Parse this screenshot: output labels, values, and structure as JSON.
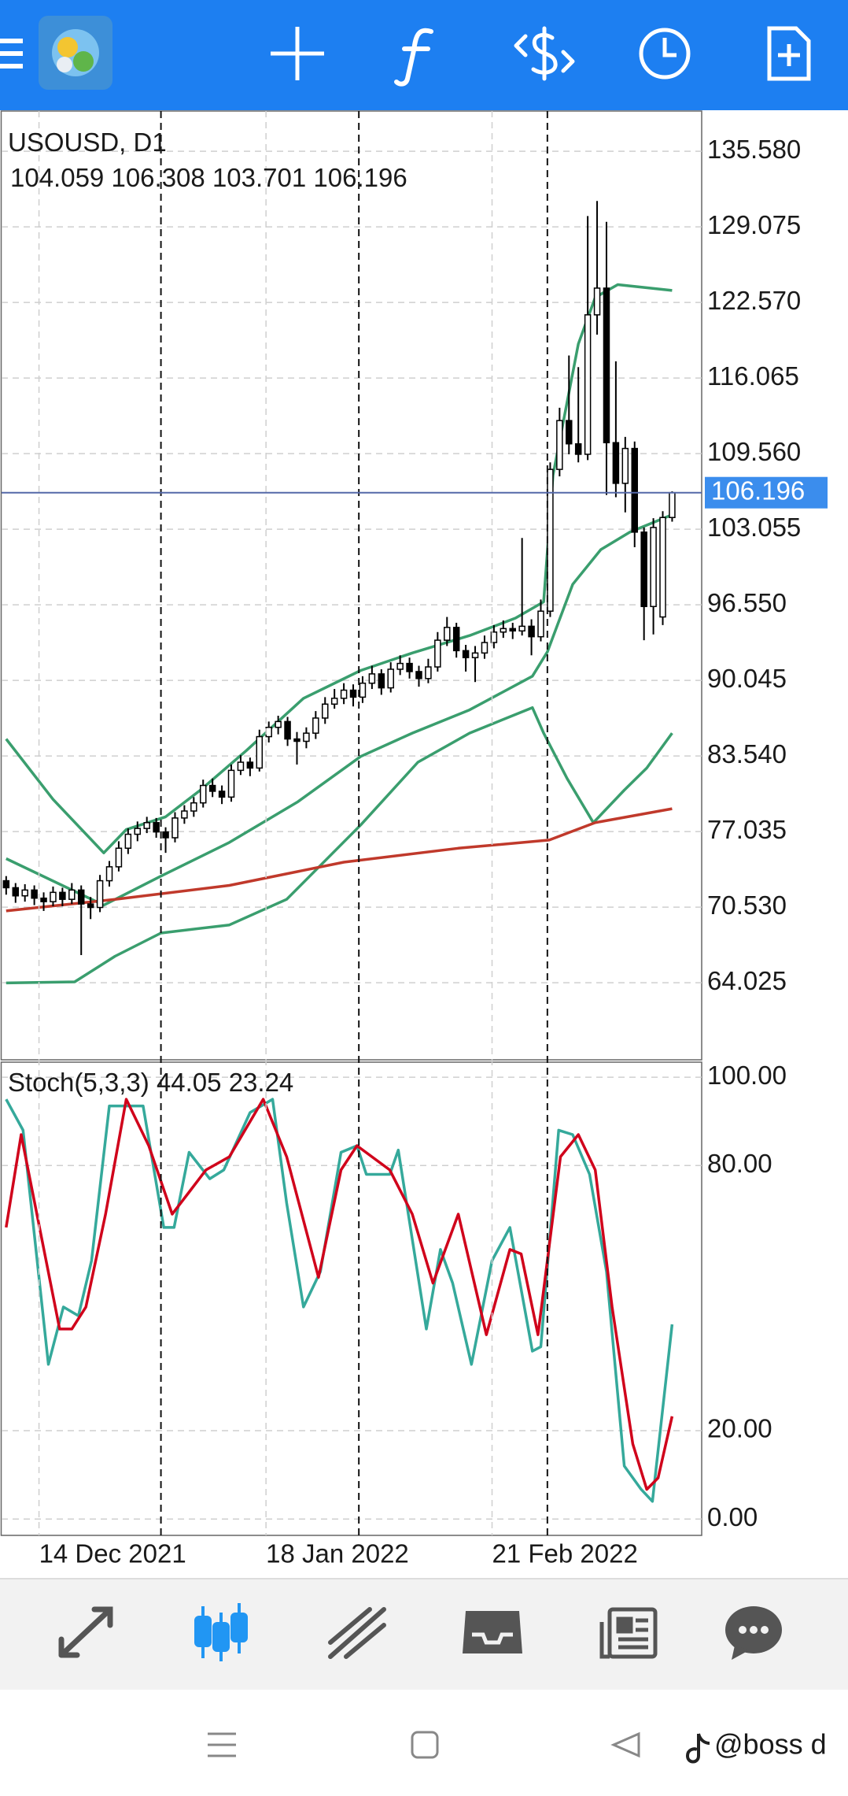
{
  "chart_data": [
    {
      "type": "candlestick",
      "title": "USOUSD, D1",
      "xlim": [
        -0.49,
        74.15
      ],
      "ylim": [
        57.39,
        139.04
      ],
      "yticks": [
        {
          "value": 135.58,
          "label": "135.580"
        },
        129.075,
        {
          "value": 122.57,
          "label": "122.570"
        },
        116.065,
        {
          "value": 109.56,
          "label": "109.560"
        },
        103.055,
        {
          "value": 96.55,
          "label": "96.550"
        },
        90.045,
        {
          "value": 83.54,
          "label": "83.540"
        },
        77.035,
        {
          "value": 70.53,
          "label": "70.530"
        },
        64.025
      ],
      "xticks": [
        {
          "value": 3.5,
          "label": "14 Dec 2021"
        },
        {
          "value": 27.7,
          "label": "18 Jan 2022"
        },
        {
          "value": 51.8,
          "label": "21 Feb 2022"
        }
      ],
      "grid": true,
      "up_color": "#ffffff",
      "down_color": "#000000",
      "candles": [
        [
          72.8,
          73.2,
          71.6,
          72.2
        ],
        [
          72.2,
          72.6,
          70.9,
          71.5
        ],
        [
          71.5,
          72.5,
          71.0,
          72.0
        ],
        [
          72.0,
          72.4,
          70.7,
          71.3
        ],
        [
          71.3,
          71.8,
          70.2,
          71.0
        ],
        [
          71.0,
          72.3,
          70.6,
          71.8
        ],
        [
          71.8,
          72.2,
          70.6,
          71.2
        ],
        [
          71.2,
          72.6,
          70.8,
          72.0
        ],
        [
          72.0,
          72.4,
          66.4,
          70.8
        ],
        [
          70.8,
          71.4,
          69.5,
          70.5
        ],
        [
          70.5,
          73.3,
          70.1,
          72.8
        ],
        [
          72.8,
          74.5,
          72.3,
          74.0
        ],
        [
          74.0,
          76.2,
          73.6,
          75.6
        ],
        [
          75.6,
          77.3,
          75.1,
          76.8
        ],
        [
          76.8,
          77.9,
          76.2,
          77.3
        ],
        [
          77.3,
          78.3,
          76.9,
          77.8
        ],
        [
          77.8,
          78.2,
          76.5,
          77.0
        ],
        [
          77.0,
          77.4,
          75.2,
          76.5
        ],
        [
          76.5,
          78.7,
          76.1,
          78.2
        ],
        [
          78.2,
          79.3,
          77.7,
          78.8
        ],
        [
          78.8,
          80.0,
          78.3,
          79.5
        ],
        [
          79.5,
          81.5,
          79.1,
          81.0
        ],
        [
          81.0,
          81.6,
          80.0,
          80.5
        ],
        [
          80.5,
          81.0,
          79.4,
          80.0
        ],
        [
          80.0,
          82.8,
          79.6,
          82.3
        ],
        [
          82.3,
          83.6,
          81.9,
          83.0
        ],
        [
          83.0,
          83.4,
          81.8,
          82.5
        ],
        [
          82.5,
          85.8,
          82.2,
          85.2
        ],
        [
          85.2,
          86.5,
          84.7,
          86.0
        ],
        [
          86.0,
          87.0,
          85.4,
          86.5
        ],
        [
          86.5,
          86.9,
          84.4,
          85.0
        ],
        [
          85.0,
          85.6,
          82.8,
          84.8
        ],
        [
          84.8,
          86.0,
          84.2,
          85.5
        ],
        [
          85.5,
          87.4,
          85.0,
          86.8
        ],
        [
          86.8,
          88.6,
          86.3,
          88.0
        ],
        [
          88.0,
          89.3,
          87.6,
          88.5
        ],
        [
          88.5,
          89.8,
          88.0,
          89.2
        ],
        [
          89.2,
          89.7,
          87.8,
          88.6
        ],
        [
          88.6,
          90.4,
          88.1,
          89.8
        ],
        [
          89.8,
          91.3,
          89.3,
          90.6
        ],
        [
          90.6,
          91.0,
          88.8,
          89.4
        ],
        [
          89.4,
          91.6,
          89.0,
          91.0
        ],
        [
          91.0,
          92.2,
          90.5,
          91.5
        ],
        [
          91.5,
          92.0,
          90.2,
          90.8
        ],
        [
          90.8,
          91.3,
          89.5,
          90.2
        ],
        [
          90.2,
          91.9,
          89.8,
          91.2
        ],
        [
          91.2,
          94.2,
          90.8,
          93.5
        ],
        [
          93.5,
          95.5,
          93.0,
          94.6
        ],
        [
          94.6,
          95.0,
          92.0,
          92.6
        ],
        [
          92.6,
          93.1,
          90.8,
          92.0
        ],
        [
          92.0,
          93.0,
          89.9,
          92.4
        ],
        [
          92.4,
          93.9,
          91.9,
          93.3
        ],
        [
          93.3,
          94.8,
          92.8,
          94.2
        ],
        [
          94.2,
          95.2,
          93.7,
          94.5
        ],
        [
          94.5,
          95.0,
          93.6,
          94.3
        ],
        [
          94.3,
          102.3,
          93.9,
          94.7
        ],
        [
          94.7,
          95.3,
          92.2,
          93.8
        ],
        [
          93.8,
          97.0,
          93.4,
          96.0
        ],
        [
          96.0,
          108.8,
          95.5,
          108.2
        ],
        [
          108.2,
          113.5,
          107.6,
          112.4
        ],
        [
          112.4,
          118.0,
          109.5,
          110.4
        ],
        [
          110.4,
          117.0,
          108.8,
          109.5
        ],
        [
          109.5,
          130.0,
          109.0,
          121.5
        ],
        [
          121.5,
          131.3,
          119.8,
          123.8
        ],
        [
          123.8,
          129.5,
          106.0,
          110.5
        ],
        [
          110.5,
          117.5,
          105.8,
          107.0
        ],
        [
          107.0,
          111.0,
          104.5,
          110.0
        ],
        [
          110.0,
          110.6,
          101.5,
          102.8
        ],
        [
          102.8,
          103.2,
          93.5,
          96.4
        ],
        [
          96.4,
          104.0,
          94.0,
          103.2
        ],
        [
          95.5,
          104.6,
          94.8,
          104.059
        ],
        [
          104.059,
          106.308,
          103.701,
          106.196
        ]
      ],
      "price_line_color": "#5468a8",
      "price_label_color": "#3b8ded",
      "series": [
        {
          "color": "#3a9e6e",
          "x": [
            0,
            5,
            10.4,
            12.8,
            17,
            20.7,
            25.6,
            31.7,
            37.8,
            43.3,
            49.4,
            54.3,
            57.3,
            58.3,
            61,
            62.8,
            65.2,
            71
          ],
          "values": [
            85.0,
            79.8,
            75.2,
            77.2,
            78.3,
            80.6,
            84.0,
            88.5,
            90.9,
            92.4,
            93.9,
            95.4,
            96.8,
            107.7,
            119.0,
            123.0,
            124.1,
            123.6
          ]
        },
        {
          "color": "#3a9e6e",
          "x": [
            0,
            10.4,
            16.5,
            23.8,
            31.1,
            37.8,
            43.3,
            49.4,
            56.1,
            57.7,
            60.4,
            63.4,
            66.5,
            71
          ],
          "values": [
            74.7,
            70.7,
            73.2,
            76.1,
            79.6,
            83.5,
            85.5,
            87.5,
            90.4,
            92.5,
            98.3,
            101.3,
            102.8,
            104.3
          ]
        },
        {
          "color": "#3a9e6e",
          "x": [
            0,
            7.3,
            11.6,
            16.5,
            23.8,
            29.9,
            37.8,
            43.9,
            49.4,
            56.1,
            57.3,
            59.8,
            62.6,
            65.9,
            68.3,
            71
          ],
          "values": [
            64.0,
            64.1,
            66.3,
            68.3,
            69.0,
            71.2,
            77.6,
            83.0,
            85.5,
            87.7,
            85.5,
            81.6,
            77.8,
            80.6,
            82.5,
            85.5
          ]
        },
        {
          "color": "#c0392b",
          "x": [
            0,
            11.6,
            23.8,
            36,
            48.2,
            57.9,
            62.8,
            71
          ],
          "values": [
            70.2,
            71.2,
            72.4,
            74.4,
            75.6,
            76.3,
            77.8,
            79.0
          ]
        }
      ]
    },
    {
      "type": "line",
      "title": "Stoch(5,3,3)",
      "xlim": [
        -0.49,
        74.15
      ],
      "ylim": [
        -3.7,
        103.4
      ],
      "yticks": [
        {
          "value": 100,
          "label": "100.00"
        },
        {
          "value": 80,
          "label": "80.00"
        },
        {
          "value": 20,
          "label": "20.00"
        },
        {
          "value": 0,
          "label": "0.00"
        }
      ],
      "grid": true,
      "series": [
        {
          "color": "#35a99b",
          "x": [
            0,
            1.8,
            4.5,
            6.1,
            7.7,
            9.1,
            11,
            14.6,
            16.8,
            17.9,
            19.5,
            21.7,
            23.2,
            26,
            28.4,
            29.9,
            31.7,
            33.5,
            35.7,
            37.4,
            38.4,
            40.9,
            41.8,
            44.8,
            46.3,
            47.6,
            49.6,
            51.8,
            53.7,
            56.1,
            57,
            58.9,
            60.4,
            62.2,
            64,
            65.9,
            67.7,
            68.9,
            71
          ],
          "values": [
            95,
            88,
            35,
            48,
            46,
            58.5,
            93.5,
            93.5,
            66,
            66,
            83,
            77,
            79,
            92,
            95,
            71.5,
            48,
            56,
            83,
            84.5,
            78,
            78,
            83.5,
            43,
            61,
            53.4,
            35,
            58.5,
            66,
            38,
            39,
            88,
            87,
            78,
            56,
            12,
            6.7,
            4,
            44.05
          ]
        },
        {
          "color": "#d0021b",
          "x": [
            0,
            1.6,
            5.7,
            7,
            8.5,
            10.6,
            12.8,
            15.2,
            17.7,
            19.5,
            21.3,
            23.8,
            27.4,
            29.9,
            33.3,
            35.7,
            37.4,
            40.9,
            43.3,
            45.5,
            48.2,
            51.2,
            53.7,
            54.9,
            56.7,
            59.1,
            61,
            62.8,
            64.6,
            66.8,
            68.3,
            69.5,
            71
          ],
          "values": [
            66,
            87,
            43,
            43,
            48,
            69,
            95,
            84.5,
            69,
            74,
            79,
            82,
            95,
            82,
            54.7,
            79,
            84.5,
            79,
            69,
            53.4,
            69,
            41.7,
            61,
            60,
            41.7,
            82,
            87,
            79,
            48,
            17,
            6.7,
            9.3,
            23.24
          ]
        }
      ]
    }
  ],
  "watermark": "@boss d"
}
